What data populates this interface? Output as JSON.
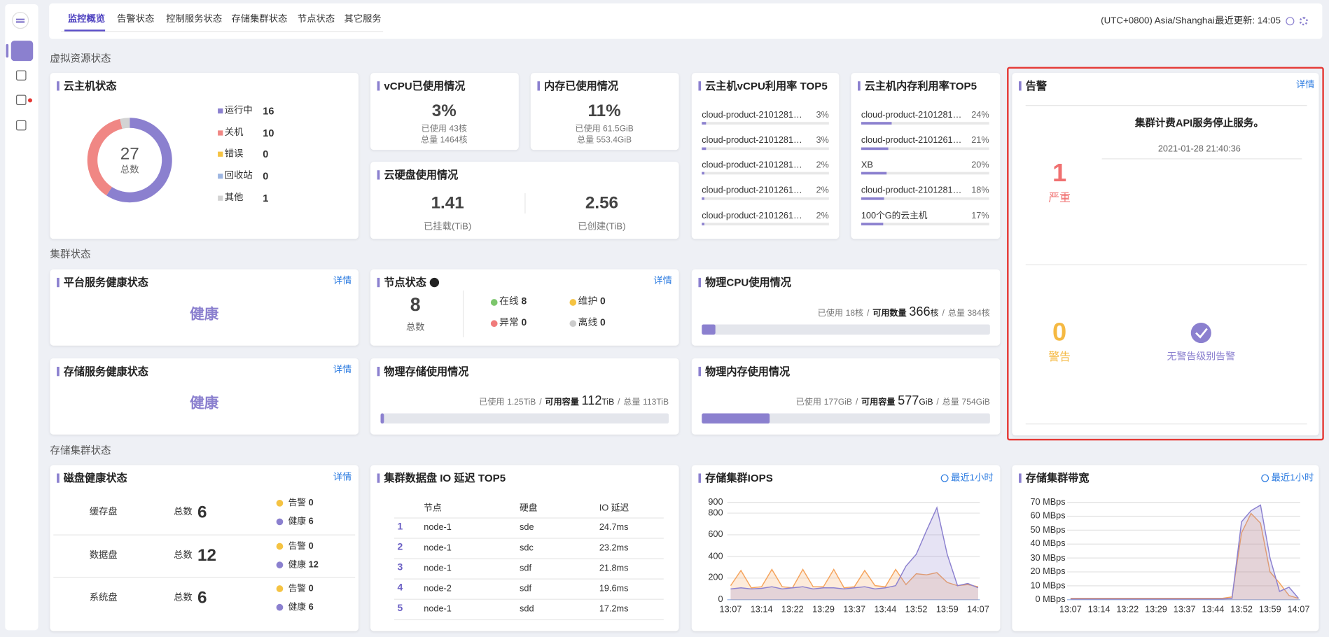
{
  "nav": {
    "tabs": [
      "监控概览",
      "告警状态",
      "控制服务状态",
      "存储集群状态",
      "节点状态",
      "其它服务"
    ],
    "timezone": "(UTC+0800) Asia/Shanghai",
    "last_update": "最近更新: 14:05"
  },
  "sections": [
    "虚拟资源状态",
    "集群状态",
    "存储集群状态"
  ],
  "chart_data": [
    {
      "type": "pie",
      "title": "云主机状态",
      "categories": [
        "运行中",
        "关机",
        "错误",
        "回收站",
        "其他"
      ],
      "values": [
        16,
        10,
        0,
        0,
        1
      ],
      "colors": [
        "#8b80cf",
        "#f08784",
        "#f5c342",
        "#9db6e2",
        "#d3d3d3"
      ],
      "center_value": 27,
      "center_label": "总数"
    },
    {
      "type": "line",
      "title": "存储集群IOPS",
      "time_range": "最近1小时",
      "categories": [
        "13:07",
        null,
        null,
        "13:14",
        null,
        null,
        "13:22",
        null,
        null,
        "13:29",
        null,
        null,
        "13:37",
        null,
        null,
        "13:44",
        null,
        null,
        "13:52",
        null,
        null,
        "13:59",
        null,
        null,
        "14:07"
      ],
      "series": [
        {
          "color": "#f5a35c",
          "values": [
            130,
            270,
            110,
            120,
            280,
            120,
            110,
            280,
            120,
            120,
            280,
            110,
            120,
            270,
            130,
            120,
            280,
            140,
            240,
            230,
            250,
            160,
            130,
            140,
            120
          ]
        },
        {
          "color": "#8b80cf",
          "values": [
            100,
            110,
            100,
            105,
            120,
            100,
            110,
            120,
            100,
            110,
            110,
            100,
            110,
            120,
            100,
            110,
            130,
            310,
            420,
            640,
            850,
            420,
            130,
            150,
            110
          ]
        }
      ],
      "ylim": [
        0,
        900
      ],
      "yticks": [
        0,
        200,
        400,
        600,
        800,
        900
      ],
      "grid": true
    },
    {
      "type": "line",
      "title": "存储集群带宽",
      "time_range": "最近1小时",
      "categories": [
        "13:07",
        null,
        null,
        "13:14",
        null,
        null,
        "13:22",
        null,
        null,
        "13:29",
        null,
        null,
        "13:37",
        null,
        null,
        "13:44",
        null,
        null,
        "13:52",
        null,
        null,
        "13:59",
        null,
        null,
        "14:07"
      ],
      "series": [
        {
          "color": "#f5a35c",
          "values": [
            1,
            1,
            1,
            1,
            1,
            1,
            1,
            1,
            1,
            1,
            1,
            1,
            1,
            1,
            1,
            1,
            1,
            2,
            48,
            62,
            55,
            20,
            12,
            3,
            1
          ]
        },
        {
          "color": "#8b80cf",
          "values": [
            0.5,
            0.5,
            0.5,
            0.5,
            0.5,
            0.5,
            0.5,
            0.5,
            0.5,
            0.5,
            0.5,
            0.5,
            0.5,
            0.5,
            0.5,
            0.5,
            0.5,
            1,
            56,
            64,
            68,
            30,
            6,
            9,
            1
          ]
        }
      ],
      "ylim": [
        0,
        70
      ],
      "yticks": [
        {
          "value": 0,
          "label": "0 MBps"
        },
        {
          "value": 10,
          "label": "10 MBps"
        },
        {
          "value": 20,
          "label": "20 MBps"
        },
        {
          "value": 30,
          "label": "30 MBps"
        },
        {
          "value": 40,
          "label": "40 MBps"
        },
        {
          "value": 50,
          "label": "50 MBps"
        },
        {
          "value": 60,
          "label": "60 MBps"
        },
        {
          "value": 70,
          "label": "70 MBps"
        }
      ],
      "grid": true
    }
  ],
  "vcpu": {
    "title": "vCPU已使用情况",
    "percent": "3%",
    "used": "已使用 43核",
    "total": "总量 1464核"
  },
  "memory": {
    "title": "内存已使用情况",
    "percent": "11%",
    "used": "已使用 61.5GiB",
    "total": "总量 553.4GiB"
  },
  "cloud_disk": {
    "title": "云硬盘使用情况",
    "items": [
      {
        "value": 1.41,
        "label": "已挂载(TiB)"
      },
      {
        "value": 2.56,
        "label": "已创建(TiB)"
      }
    ]
  },
  "vcpu_top5": {
    "title": "云主机vCPU利用率 TOP5",
    "items": [
      {
        "name": "cloud-product-2101281…",
        "value": 3,
        "value_label": "3%"
      },
      {
        "name": "cloud-product-2101281…",
        "value": 3,
        "value_label": "3%"
      },
      {
        "name": "cloud-product-2101281…",
        "value": 2,
        "value_label": "2%"
      },
      {
        "name": "cloud-product-2101261…",
        "value": 2,
        "value_label": "2%"
      },
      {
        "name": "cloud-product-2101261…",
        "value": 2,
        "value_label": "2%"
      }
    ]
  },
  "mem_top5": {
    "title": "云主机内存利用率TOP5",
    "items": [
      {
        "name": "cloud-product-2101281…",
        "value": 24,
        "value_label": "24%"
      },
      {
        "name": "cloud-product-2101261…",
        "value": 21,
        "value_label": "21%"
      },
      {
        "name": "XB",
        "value": 20,
        "value_label": "20%"
      },
      {
        "name": "cloud-product-2101281…",
        "value": 18,
        "value_label": "18%"
      },
      {
        "name": "100个G的云主机",
        "value": 17,
        "value_label": "17%"
      }
    ]
  },
  "alarm": {
    "title": "告警",
    "detail": "详情",
    "critical": {
      "count": 1,
      "label": "严重",
      "message": "集群计费API服务停止服务。",
      "time": "2021-01-28 21:40:36"
    },
    "warning": {
      "count": 0,
      "label": "警告",
      "message": "无警告级别告警"
    }
  },
  "platform_health": {
    "title": "平台服务健康状态",
    "detail": "详情",
    "status": "健康"
  },
  "storage_health": {
    "title": "存储服务健康状态",
    "detail": "详情",
    "status": "健康"
  },
  "nodes": {
    "title": "节点状态",
    "detail": "详情",
    "total": 8,
    "total_label": "总数",
    "items": [
      {
        "label": "在线",
        "value": 8,
        "color": "#7cc66c"
      },
      {
        "label": "维护",
        "value": 0,
        "color": "#f5c342"
      },
      {
        "label": "异常",
        "value": 0,
        "color": "#f07b7b"
      },
      {
        "label": "离线",
        "value": 0,
        "color": "#cccccc"
      }
    ]
  },
  "physical_cpu": {
    "title": "物理CPU使用情况",
    "used_prefix": "已使用",
    "used": 18,
    "avail_prefix": "可用数量",
    "avail": 366,
    "total_prefix": "总量",
    "total": 384,
    "unit": "核",
    "separator": "/"
  },
  "physical_storage": {
    "title": "物理存储使用情况",
    "used_prefix": "已使用",
    "used": 1.25,
    "avail_prefix": "可用容量",
    "avail": 112,
    "total_prefix": "总量",
    "total": 113,
    "unit": "TiB",
    "separator": "/"
  },
  "physical_memory": {
    "title": "物理内存使用情况",
    "used_prefix": "已使用",
    "used": 177,
    "avail_prefix": "可用容量",
    "avail": 577,
    "total_prefix": "总量",
    "total": 754,
    "unit": "GiB",
    "separator": "/"
  },
  "disk_health": {
    "title": "磁盘健康状态",
    "detail": "详情",
    "total_label": "总数",
    "alarm_label": "告警",
    "healthy_label": "健康",
    "rows": [
      {
        "name": "缓存盘",
        "total": 6,
        "alarm": 0,
        "healthy": 6
      },
      {
        "name": "数据盘",
        "total": 12,
        "alarm": 0,
        "healthy": 12
      },
      {
        "name": "系统盘",
        "total": 6,
        "alarm": 0,
        "healthy": 6
      }
    ]
  },
  "io_latency": {
    "title": "集群数据盘 IO 延迟 TOP5",
    "headers": [
      "节点",
      "硬盘",
      "IO 延迟"
    ],
    "rows": [
      [
        1,
        "node-1",
        "sde",
        "24.7ms"
      ],
      [
        2,
        "node-1",
        "sdc",
        "23.2ms"
      ],
      [
        3,
        "node-1",
        "sdf",
        "21.8ms"
      ],
      [
        4,
        "node-2",
        "sdf",
        "19.6ms"
      ],
      [
        5,
        "node-1",
        "sdd",
        "17.2ms"
      ]
    ]
  }
}
